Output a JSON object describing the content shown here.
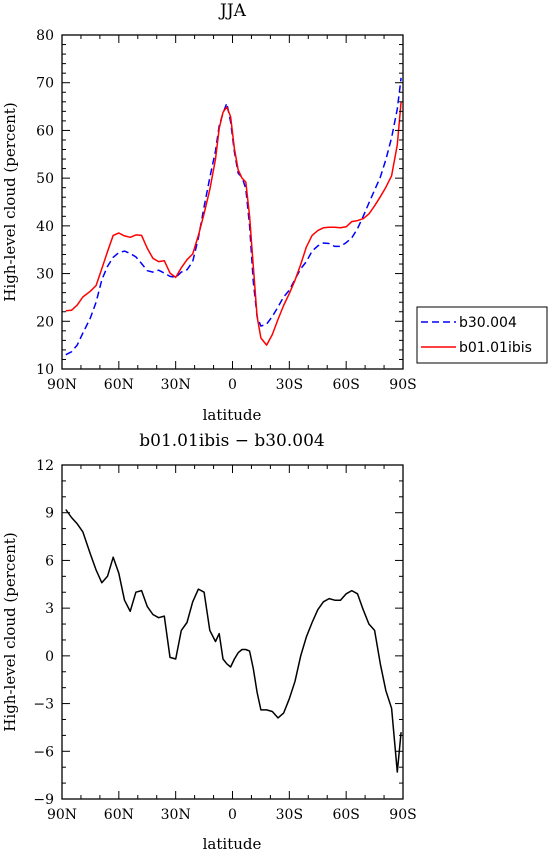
{
  "chart_data": [
    {
      "type": "line",
      "title": "JJA",
      "xlabel": "latitude",
      "ylabel": "High-level cloud (percent)",
      "xlim": [
        90,
        -90
      ],
      "ylim": [
        10,
        80
      ],
      "x_tick_values": [
        90,
        60,
        30,
        0,
        -30,
        -60,
        -90
      ],
      "x_tick_labels": [
        "90N",
        "60N",
        "30N",
        "0",
        "30S",
        "60S",
        "90S"
      ],
      "y_ticks": [
        "10",
        "20",
        "30",
        "40",
        "50",
        "60",
        "70",
        "80"
      ],
      "legend_position": "right",
      "series": [
        {
          "name": "b30.004",
          "color": "#0000ff",
          "style": "dashed",
          "x": [
            88,
            85,
            82,
            79,
            75,
            72,
            69,
            66,
            63,
            60,
            57,
            54,
            51,
            48,
            45,
            42,
            39,
            36,
            33,
            30,
            27,
            24,
            21,
            18,
            15,
            12,
            9,
            7,
            5,
            3,
            1,
            -1,
            -3,
            -5,
            -7,
            -9,
            -11,
            -13,
            -15,
            -18,
            -21,
            -24,
            -27,
            -30,
            -33,
            -36,
            -39,
            -42,
            -45,
            -48,
            -51,
            -54,
            -57,
            -60,
            -63,
            -66,
            -69,
            -72,
            -75,
            -78,
            -81,
            -84,
            -87,
            -89
          ],
          "values": [
            13.0,
            13.6,
            15.0,
            17.5,
            20.7,
            24.0,
            28.7,
            31.5,
            33.4,
            34.4,
            34.7,
            34.2,
            33.5,
            32.1,
            30.6,
            30.3,
            30.7,
            30.1,
            29.4,
            29.2,
            30.3,
            30.8,
            32.5,
            37.5,
            44.0,
            50.1,
            55.7,
            61.0,
            63.6,
            65.7,
            61.8,
            55.5,
            51.0,
            50.2,
            47.8,
            40.0,
            28.3,
            21.0,
            19.0,
            19.4,
            21.0,
            23.0,
            25.1,
            26.5,
            28.8,
            31.0,
            32.5,
            34.7,
            35.8,
            36.4,
            36.3,
            35.7,
            35.7,
            36.5,
            37.5,
            39.4,
            42.0,
            44.8,
            47.5,
            50.2,
            53.9,
            58.5,
            64.5,
            71.0
          ]
        },
        {
          "name": "b01.01ibis",
          "color": "#ff0000",
          "style": "solid",
          "x": [
            88,
            85,
            82,
            79,
            75,
            72,
            69,
            66,
            63,
            60,
            57,
            54,
            51,
            48,
            45,
            42,
            39,
            36,
            33,
            30,
            27,
            24,
            21,
            18,
            15,
            12,
            9,
            7,
            5,
            3,
            1,
            -1,
            -3,
            -5,
            -7,
            -9,
            -11,
            -13,
            -15,
            -18,
            -21,
            -24,
            -27,
            -30,
            -33,
            -36,
            -39,
            -42,
            -45,
            -48,
            -51,
            -54,
            -57,
            -60,
            -63,
            -66,
            -69,
            -72,
            -75,
            -78,
            -81,
            -84,
            -87,
            -89
          ],
          "values": [
            22.2,
            22.3,
            23.4,
            25.1,
            26.3,
            27.5,
            31.0,
            34.6,
            38.0,
            38.5,
            37.9,
            37.6,
            38.1,
            38.0,
            35.3,
            33.2,
            32.5,
            32.7,
            30.1,
            29.2,
            31.2,
            32.9,
            34.1,
            38.0,
            42.6,
            47.6,
            54.0,
            60.4,
            63.8,
            64.9,
            62.9,
            56.2,
            51.7,
            50.0,
            49.2,
            42.0,
            31.5,
            21.0,
            16.5,
            15.0,
            17.2,
            20.4,
            23.3,
            25.8,
            28.6,
            31.9,
            35.6,
            38.0,
            39.0,
            39.6,
            39.7,
            39.7,
            39.6,
            39.8,
            40.9,
            41.1,
            41.5,
            42.5,
            44.2,
            46.1,
            48.1,
            50.5,
            57.0,
            66.0
          ]
        }
      ]
    },
    {
      "type": "line",
      "title": "b01.01ibis − b30.004",
      "xlabel": "latitude",
      "ylabel": "High-level cloud (percent)",
      "xlim": [
        90,
        -90
      ],
      "ylim": [
        -9,
        12
      ],
      "x_tick_values": [
        90,
        60,
        30,
        0,
        -30,
        -60,
        -90
      ],
      "x_tick_labels": [
        "90N",
        "60N",
        "30N",
        "0",
        "30S",
        "60S",
        "90S"
      ],
      "y_ticks": [
        "−9",
        "−6",
        "−3",
        "0",
        "3",
        "6",
        "9",
        "12"
      ],
      "series": [
        {
          "color": "#000000",
          "style": "solid",
          "x": [
            88,
            85,
            82,
            79,
            75,
            72,
            69,
            66,
            63,
            60,
            57,
            54,
            51,
            48,
            45,
            42,
            39,
            36,
            33,
            30,
            27,
            24,
            21,
            18,
            15,
            12,
            9,
            7,
            5,
            3,
            1,
            -1,
            -3,
            -5,
            -7,
            -9,
            -11,
            -13,
            -15,
            -18,
            -21,
            -24,
            -27,
            -30,
            -33,
            -36,
            -39,
            -42,
            -45,
            -48,
            -51,
            -54,
            -57,
            -60,
            -63,
            -66,
            -69,
            -72,
            -75,
            -78,
            -81,
            -84,
            -87,
            -89
          ],
          "values": [
            9.2,
            8.7,
            8.3,
            7.8,
            6.4,
            5.4,
            4.6,
            5.0,
            6.2,
            5.2,
            3.5,
            2.8,
            4.0,
            4.1,
            3.1,
            2.6,
            2.4,
            2.5,
            -0.1,
            -0.2,
            1.6,
            2.1,
            3.4,
            4.2,
            4.0,
            1.6,
            0.9,
            1.4,
            -0.2,
            -0.5,
            -0.7,
            -0.2,
            0.2,
            0.4,
            0.4,
            0.3,
            -0.8,
            -2.3,
            -3.4,
            -3.4,
            -3.5,
            -3.9,
            -3.6,
            -2.7,
            -1.6,
            0.0,
            1.2,
            2.1,
            2.9,
            3.4,
            3.6,
            3.5,
            3.5,
            3.9,
            4.1,
            3.9,
            2.9,
            2.0,
            1.6,
            -0.5,
            -2.2,
            -3.3,
            -7.3,
            -4.8
          ]
        }
      ]
    }
  ]
}
